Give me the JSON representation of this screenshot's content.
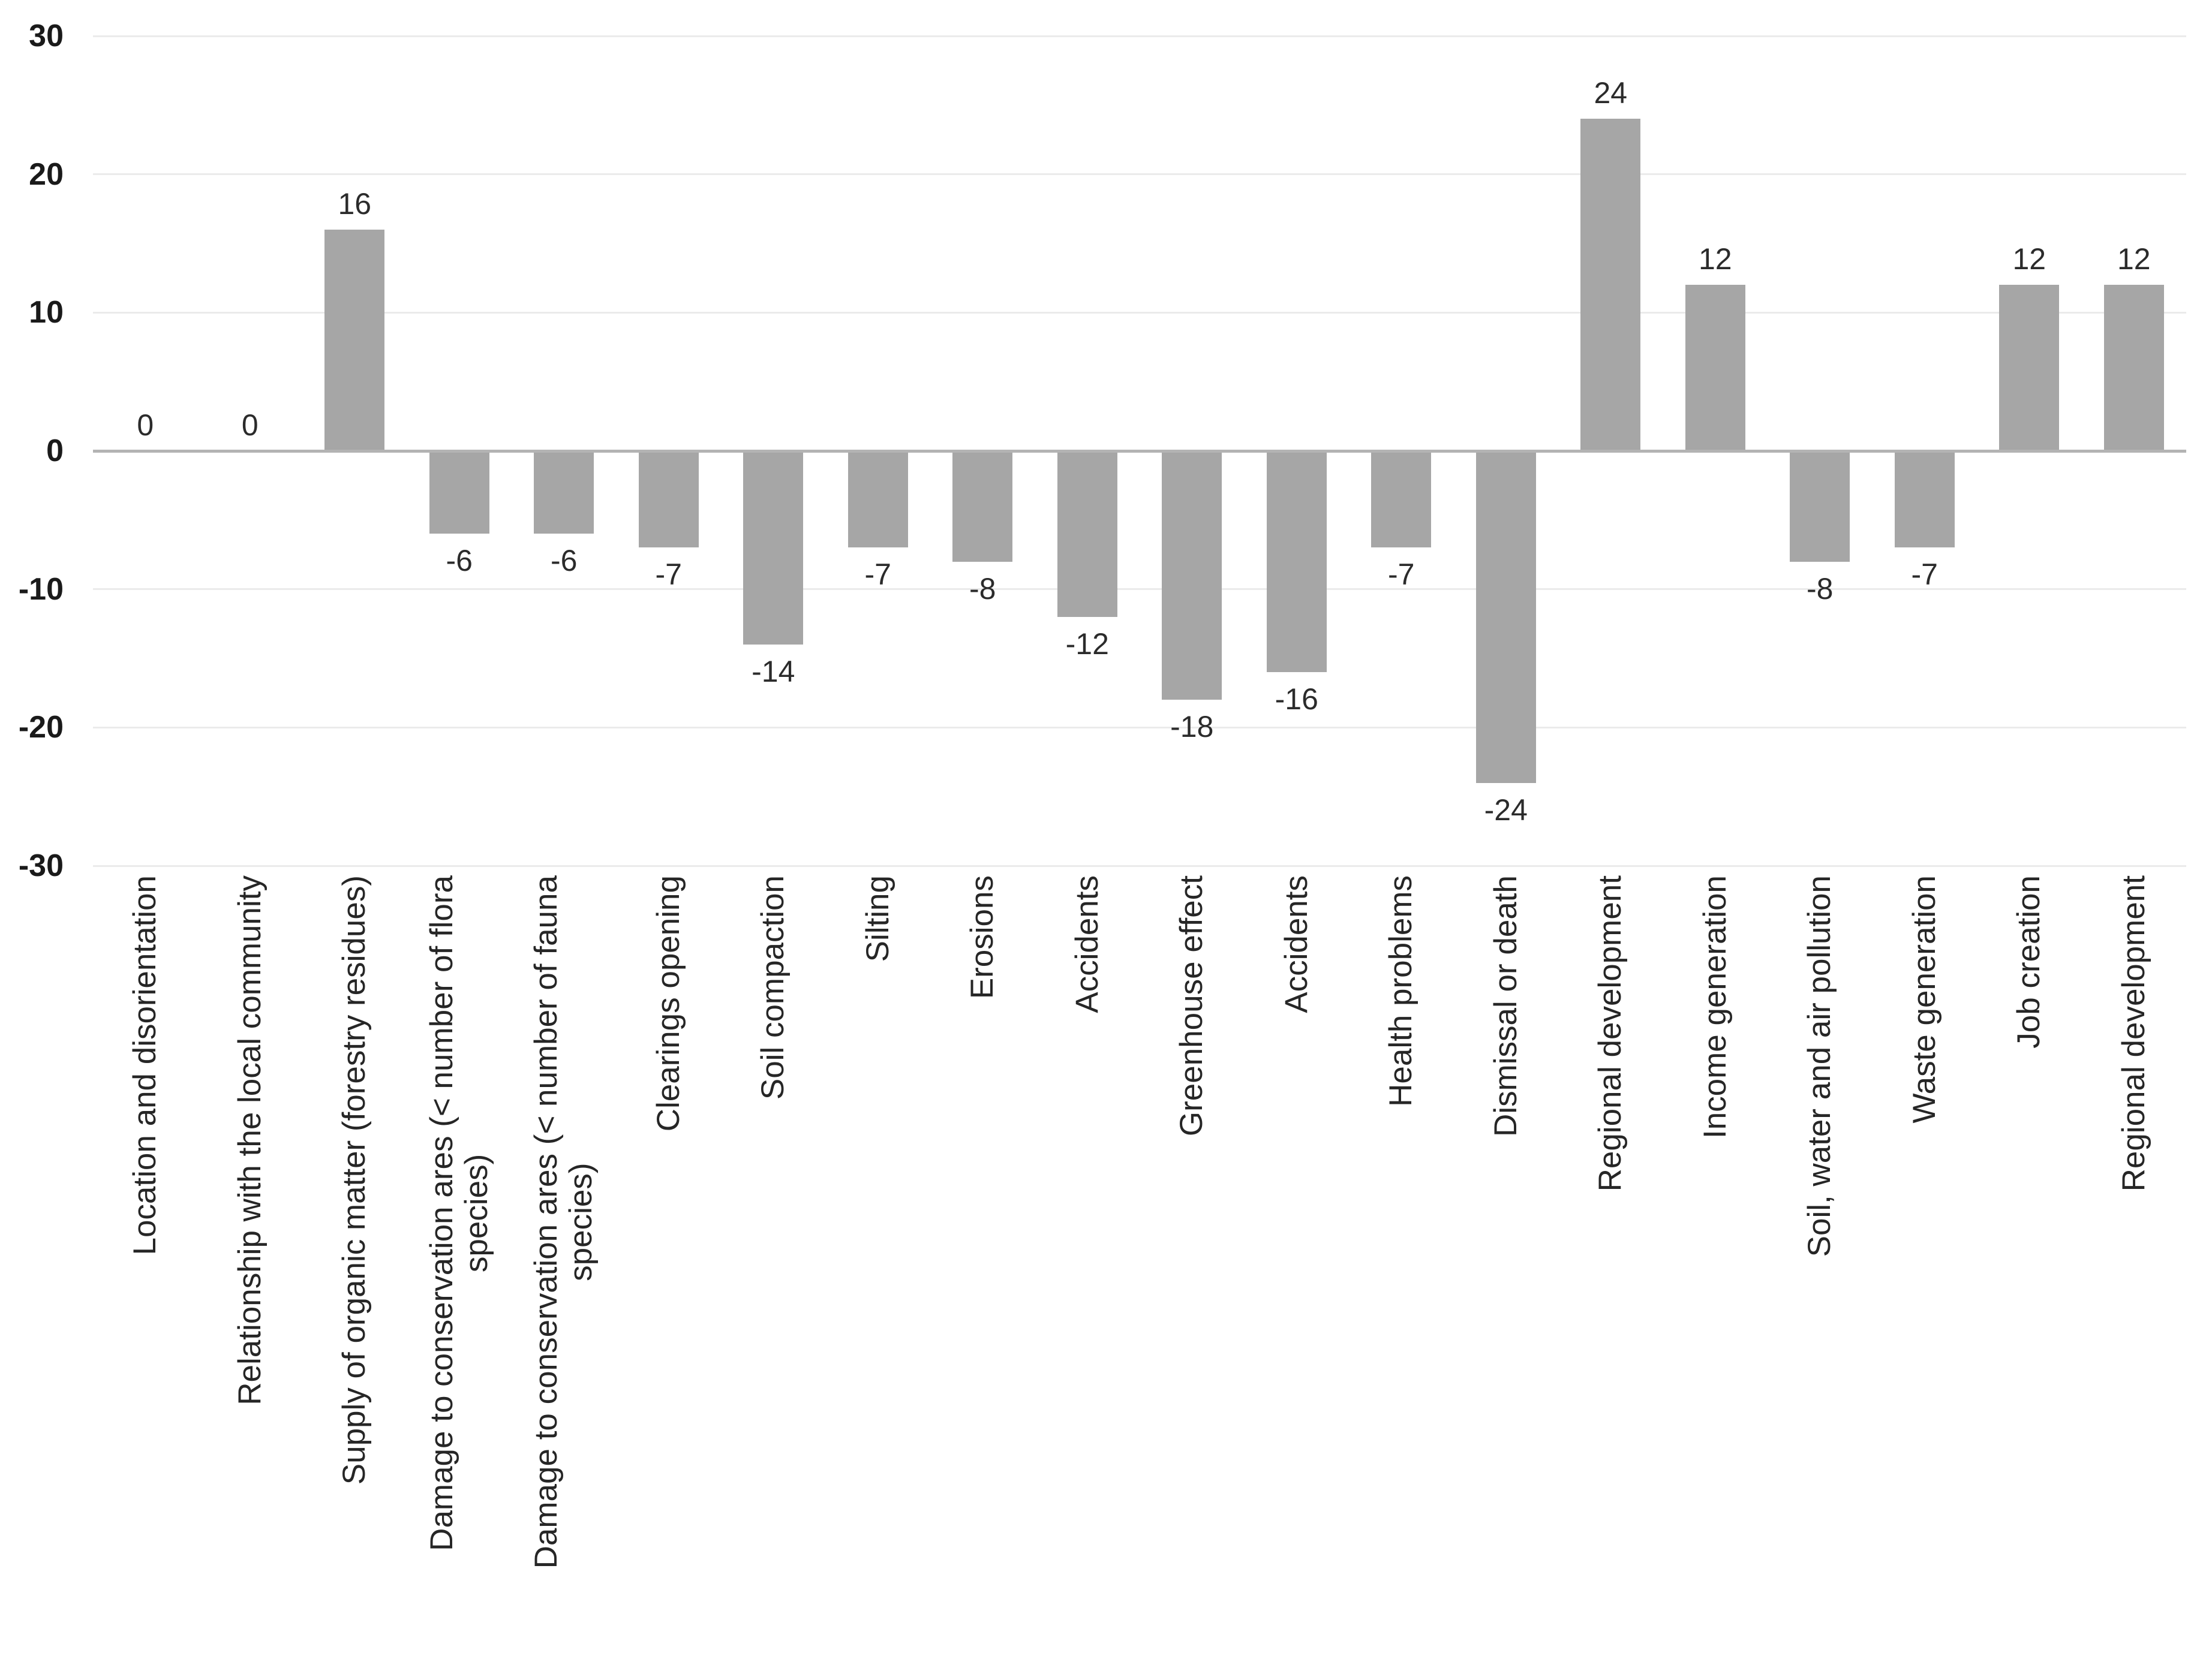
{
  "chart_data": {
    "type": "bar",
    "title": "",
    "legend": "none",
    "grid": true,
    "ylim": [
      -30,
      30
    ],
    "yticks": [
      30,
      20,
      10,
      0,
      -10,
      -20,
      -30
    ],
    "ytick_labels": [
      "30",
      "20",
      "10",
      "0",
      "-10",
      "-20",
      "-30"
    ],
    "categories": [
      "Location and disorientation",
      "Relationship with the local community",
      "Supply of organic matter (forestry residues)",
      "Damage to conservation ares (< number of flora\nspecies)",
      "Damage to conservation ares (< number of fauna\nspecies)",
      "Clearings opening",
      "Soil compaction",
      "Silting",
      "Erosions",
      "Accidents",
      "Greenhouse effect",
      "Accidents",
      "Health problems",
      "Dismissal or death",
      "Regional development",
      "Income generation",
      "Soil, water and air pollution",
      "Waste generation",
      "Job creation",
      "Regional development"
    ],
    "values": [
      0,
      0,
      16,
      -6,
      -6,
      -7,
      -14,
      -7,
      -8,
      -12,
      -18,
      -16,
      -7,
      -24,
      24,
      12,
      -8,
      -7,
      12,
      12
    ],
    "data_labels": [
      "0",
      "0",
      "16",
      "-6",
      "-6",
      "-7",
      "-14",
      "-7",
      "-8",
      "-12",
      "-18",
      "-16",
      "-7",
      "-24",
      "24",
      "12",
      "-8",
      "-7",
      "12",
      "12"
    ],
    "colors": {
      "bar": "#a6a6a6",
      "gridline": "#ebebeb",
      "zero_line": "#b3b3b3",
      "tick_text": "#1a1a1a",
      "label_text": "#262626",
      "background": "#ffffff"
    }
  }
}
